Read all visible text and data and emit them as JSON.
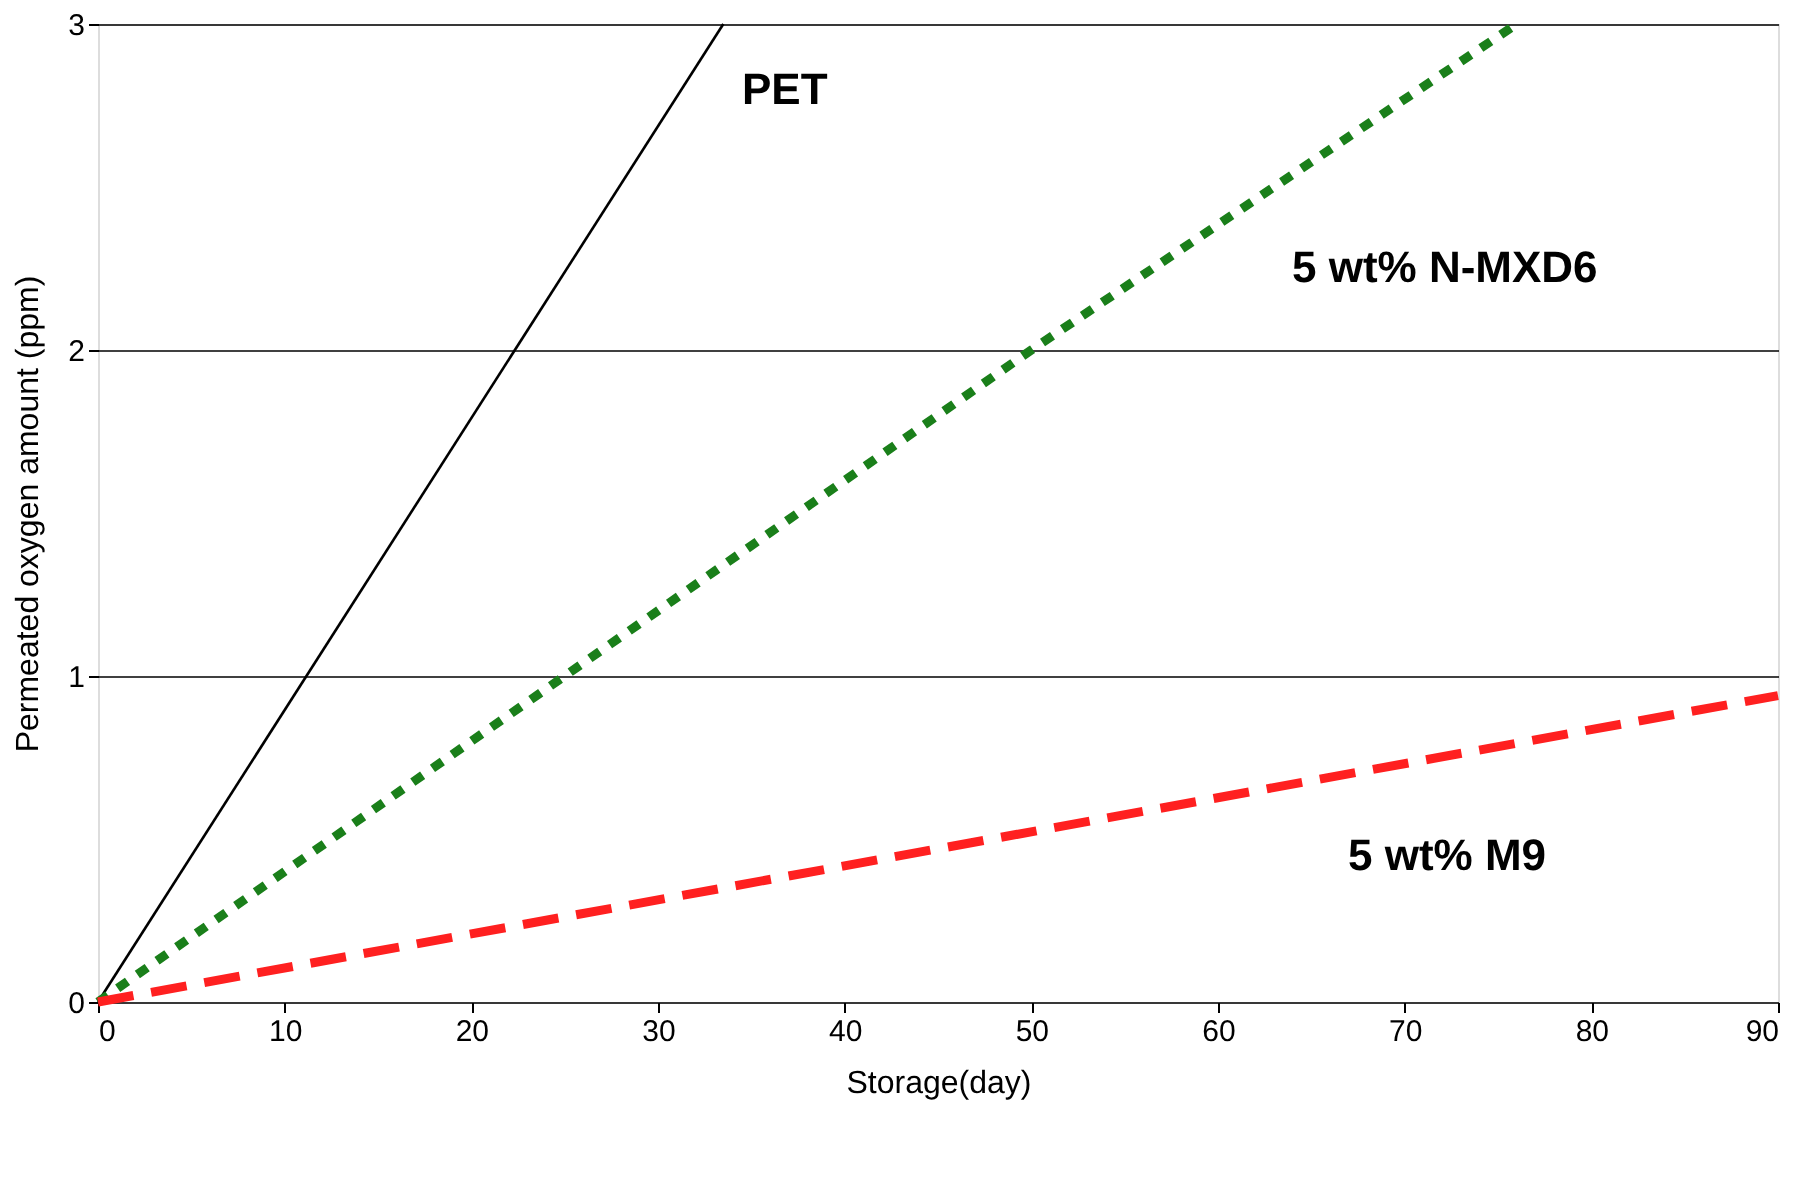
{
  "chart_data": {
    "type": "line",
    "xlabel": "Storage(day)",
    "ylabel": "Permeated oxygen amount (ppm)",
    "series": [
      {
        "name": "PET",
        "color": "#000000",
        "line_style": "solid",
        "x": [
          0,
          33.5
        ],
        "values": [
          0,
          3
        ]
      },
      {
        "name": "5 wt% N-MXD6",
        "color": "#1a7f1a",
        "line_style": "dotted",
        "x": [
          0,
          25,
          50,
          76
        ],
        "values": [
          0,
          1,
          2,
          3
        ]
      },
      {
        "name": "5 wt% M9",
        "color": "#ff2020",
        "line_style": "dashed",
        "x": [
          0,
          90
        ],
        "values": [
          0,
          0.94
        ]
      }
    ],
    "xlim": [
      0,
      90
    ],
    "xticks": [
      0,
      10,
      20,
      30,
      40,
      50,
      60,
      70,
      80,
      90
    ],
    "ylim": [
      0,
      3
    ],
    "yticks": [
      0,
      1,
      2,
      3
    ],
    "grid": "y",
    "legend": false,
    "marker": "none"
  }
}
